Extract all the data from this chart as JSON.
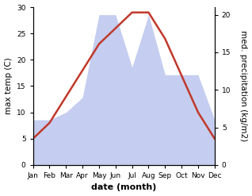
{
  "months": [
    "Jan",
    "Feb",
    "Mar",
    "Apr",
    "May",
    "Jun",
    "Jul",
    "Aug",
    "Sep",
    "Oct",
    "Nov",
    "Dec"
  ],
  "temperature": [
    5,
    8,
    13,
    18,
    23,
    26,
    29,
    29,
    24,
    17,
    10,
    5
  ],
  "precipitation": [
    6,
    6,
    7,
    9,
    20,
    20,
    13,
    20,
    12,
    12,
    12,
    6
  ],
  "temp_color": "#c0392b",
  "precip_color": "#c5cef0",
  "temp_ylim": [
    0,
    30
  ],
  "precip_ylim": [
    0,
    21
  ],
  "temp_yticks": [
    0,
    5,
    10,
    15,
    20,
    25,
    30
  ],
  "precip_yticks": [
    0,
    5,
    10,
    15,
    20
  ],
  "ylabel_left": "max temp (C)",
  "ylabel_right": "med. precipitation (kg/m2)",
  "xlabel": "date (month)",
  "background_color": "#ffffff",
  "label_fontsize": 7.5,
  "tick_fontsize": 6.5,
  "xlabel_fontsize": 8,
  "linewidth": 1.8
}
